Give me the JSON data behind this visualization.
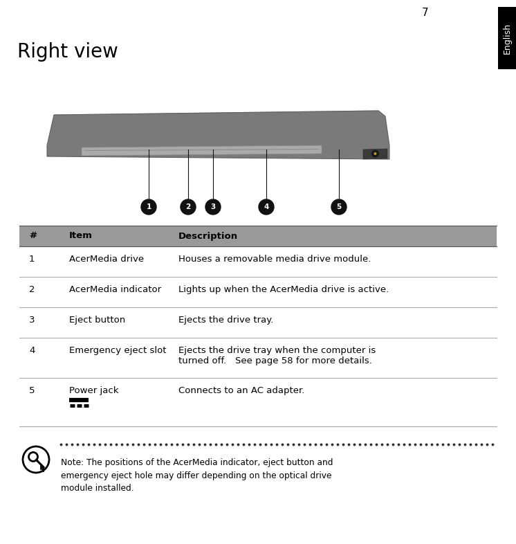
{
  "page_number": "7",
  "title": "Right view",
  "tab_text": "English",
  "tab_bg": "#000000",
  "tab_text_color": "#ffffff",
  "header_bg": "#999999",
  "header_cols": [
    "#",
    "Item",
    "Description"
  ],
  "table_rows": [
    {
      "num": "1",
      "item": "AcerMedia drive",
      "desc": "Houses a removable media drive module."
    },
    {
      "num": "2",
      "item": "AcerMedia indicator",
      "desc": "Lights up when the AcerMedia drive is active."
    },
    {
      "num": "3",
      "item": "Eject button",
      "desc": "Ejects the drive tray."
    },
    {
      "num": "4",
      "item": "Emergency eject slot",
      "desc": "Ejects the drive tray when the computer is\nturned off.   See page 58 for more details."
    },
    {
      "num": "5",
      "item": "Power jack",
      "desc": "Connects to an AC adapter.",
      "has_symbol": true
    }
  ],
  "note_text": "Note: The positions of the AcerMedia indicator, eject button and\nemergency eject hole may differ depending on the optical drive\nmodule installed.",
  "bg_color": "#ffffff",
  "text_color": "#000000",
  "row_line_color": "#aaaaaa",
  "callout_numbers": [
    "1",
    "2",
    "3",
    "4",
    "5"
  ]
}
